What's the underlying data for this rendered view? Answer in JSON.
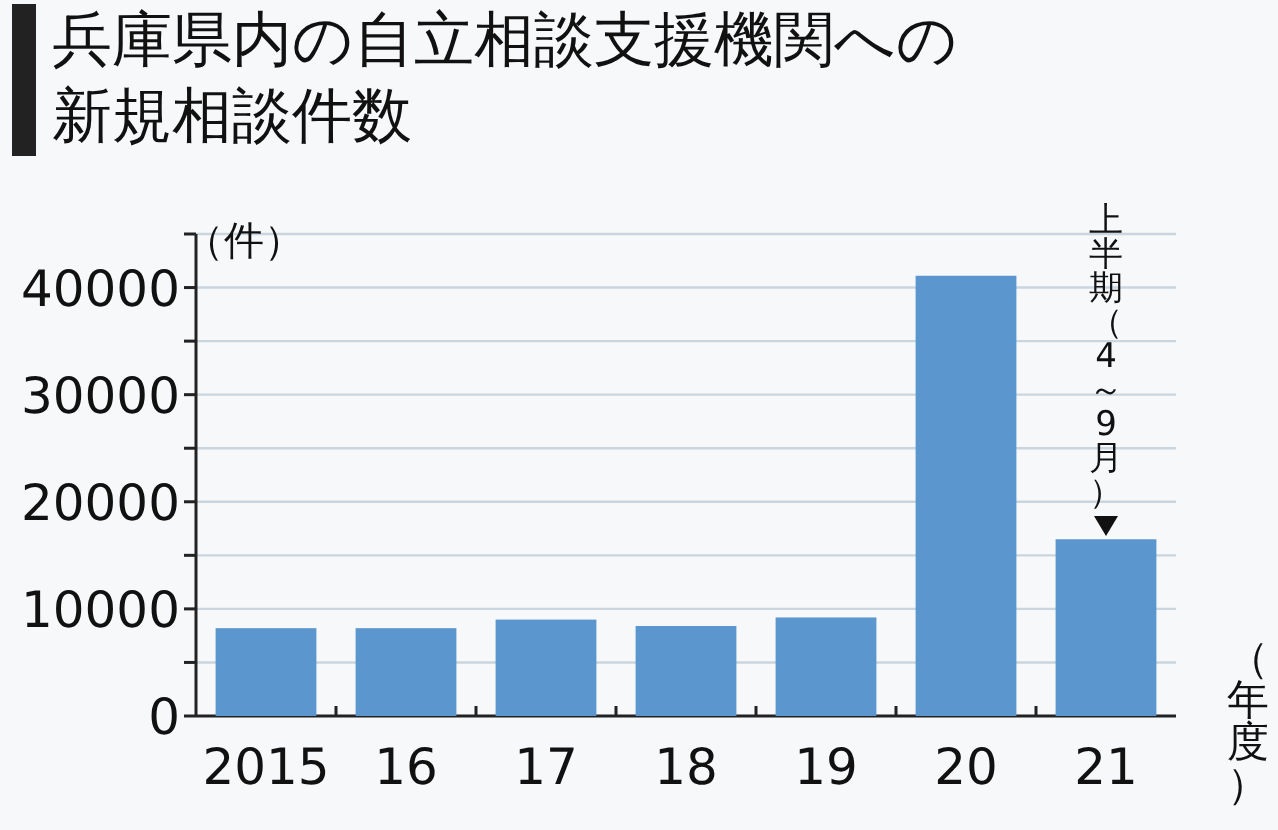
{
  "chart_data": {
    "type": "bar",
    "title": "兵庫県内の自立相談支援機関への新規相談件数",
    "ylabel": "（件）",
    "xlabel": "（年度）",
    "categories": [
      "2015",
      "16",
      "17",
      "18",
      "19",
      "20",
      "21"
    ],
    "values": [
      8200,
      8200,
      9000,
      8400,
      9200,
      41100,
      16500
    ],
    "color": "#5b96cf",
    "ylim": [
      0,
      45000
    ],
    "yticks": [
      0,
      {
        "value": 5000,
        "label": null
      },
      10000,
      {
        "value": 15000,
        "label": null
      },
      20000,
      {
        "value": 25000,
        "label": null
      },
      30000,
      {
        "value": 35000,
        "label": null
      },
      40000,
      {
        "value": 45000,
        "label": null
      }
    ],
    "grid": "y",
    "annotations": [
      "上半期（4～9月）"
    ]
  }
}
